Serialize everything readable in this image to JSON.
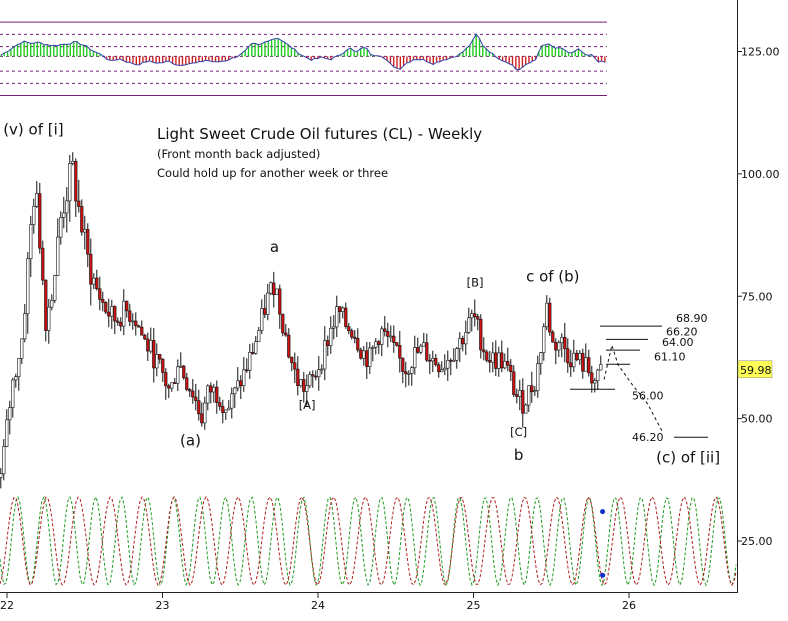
{
  "chart_data": {
    "type": "candlestick",
    "title": "Light Sweet Crude Oil futures (CL) - Weekly",
    "subtitle_lines": [
      "(Front month back adjusted)",
      "Could hold up for another week or three"
    ],
    "x_ticks": [
      "22",
      "23",
      "24",
      "25",
      "26"
    ],
    "y_ticks": [
      {
        "value": 125,
        "label": "125.00"
      },
      {
        "value": 100,
        "label": "100.00"
      },
      {
        "value": 75,
        "label": "75.00"
      },
      {
        "value": 50,
        "label": "50.00"
      },
      {
        "value": 25,
        "label": "25.00"
      }
    ],
    "ylim": [
      10,
      137
    ],
    "xlim": [
      21.96,
      26.68
    ],
    "last_price": {
      "value": 59.98,
      "label": "59.98"
    },
    "price_path": [
      [
        21.96,
        38
      ],
      [
        22.03,
        56
      ],
      [
        22.1,
        67
      ],
      [
        22.17,
        96
      ],
      [
        22.2,
        92
      ],
      [
        22.25,
        70
      ],
      [
        22.3,
        78
      ],
      [
        22.35,
        92
      ],
      [
        22.42,
        101
      ],
      [
        22.46,
        93
      ],
      [
        22.52,
        82
      ],
      [
        22.58,
        76
      ],
      [
        22.64,
        72
      ],
      [
        22.7,
        70
      ],
      [
        22.76,
        72
      ],
      [
        22.82,
        71
      ],
      [
        22.88,
        66
      ],
      [
        22.94,
        63
      ],
      [
        23.0,
        59
      ],
      [
        23.05,
        55
      ],
      [
        23.1,
        62
      ],
      [
        23.15,
        58
      ],
      [
        23.2,
        55
      ],
      [
        23.25,
        50
      ],
      [
        23.3,
        56
      ],
      [
        23.36,
        55
      ],
      [
        23.42,
        52
      ],
      [
        23.48,
        56
      ],
      [
        23.55,
        61
      ],
      [
        23.62,
        68
      ],
      [
        23.67,
        74
      ],
      [
        23.72,
        78
      ],
      [
        23.76,
        72
      ],
      [
        23.81,
        64
      ],
      [
        23.86,
        58
      ],
      [
        23.92,
        56
      ],
      [
        23.97,
        58
      ],
      [
        24.03,
        63
      ],
      [
        24.08,
        68
      ],
      [
        24.13,
        72
      ],
      [
        24.18,
        69
      ],
      [
        24.23,
        68
      ],
      [
        24.28,
        64
      ],
      [
        24.33,
        62
      ],
      [
        24.4,
        68
      ],
      [
        24.45,
        66
      ],
      [
        24.5,
        63
      ],
      [
        24.56,
        60
      ],
      [
        24.62,
        63
      ],
      [
        24.68,
        64
      ],
      [
        24.74,
        62
      ],
      [
        24.8,
        61
      ],
      [
        24.85,
        63
      ],
      [
        24.9,
        65
      ],
      [
        24.95,
        68
      ],
      [
        25.0,
        71
      ],
      [
        25.04,
        67
      ],
      [
        25.08,
        63
      ],
      [
        25.13,
        62
      ],
      [
        25.18,
        62
      ],
      [
        25.23,
        59
      ],
      [
        25.27,
        55
      ],
      [
        25.31,
        53
      ],
      [
        25.35,
        55
      ],
      [
        25.4,
        58
      ],
      [
        25.44,
        66
      ],
      [
        25.47,
        73
      ],
      [
        25.51,
        65
      ],
      [
        25.56,
        66
      ],
      [
        25.61,
        63
      ],
      [
        25.66,
        62
      ],
      [
        25.71,
        61
      ],
      [
        25.76,
        59
      ],
      [
        25.79,
        57
      ],
      [
        25.83,
        60.5
      ]
    ],
    "fib_levels": [
      {
        "value": 68.9,
        "label": "68.90"
      },
      {
        "value": 66.2,
        "label": "66.20"
      },
      {
        "value": 64.0,
        "label": "64.00"
      },
      {
        "value": 61.1,
        "label": "61.10"
      },
      {
        "value": 56.0,
        "label": "56.00"
      },
      {
        "value": 46.2,
        "label": "46.20"
      }
    ],
    "projection_path": [
      [
        25.84,
        58
      ],
      [
        25.89,
        65
      ],
      [
        25.93,
        61
      ],
      [
        26.02,
        57
      ],
      [
        26.12,
        53
      ],
      [
        26.22,
        47
      ]
    ],
    "wave_labels": [
      {
        "text": "(v) of [i]",
        "x": 22.17,
        "y": 108
      },
      {
        "text": "(a)",
        "x": 23.18,
        "y": 44.5
      },
      {
        "text": "a",
        "x": 23.72,
        "y": 84
      },
      {
        "text": "[A]",
        "x": 23.93,
        "y": 52
      },
      {
        "text": "[B]",
        "x": 25.01,
        "y": 77
      },
      {
        "text": "c of (b)",
        "x": 25.51,
        "y": 78
      },
      {
        "text": "[C]",
        "x": 25.29,
        "y": 46.5
      },
      {
        "text": "b",
        "x": 25.29,
        "y": 41.5
      },
      {
        "text": "(c) of [ii]",
        "x": 26.38,
        "y": 41
      }
    ],
    "oscillator": {
      "band_lines": [
        131,
        128.5,
        126,
        124,
        121,
        118.5,
        116
      ],
      "series": [
        [
          21.96,
          0.05
        ],
        [
          22.03,
          0.35
        ],
        [
          22.1,
          0.62
        ],
        [
          22.15,
          0.55
        ],
        [
          22.2,
          0.58
        ],
        [
          22.25,
          0.5
        ],
        [
          22.3,
          0.45
        ],
        [
          22.38,
          0.52
        ],
        [
          22.44,
          0.6
        ],
        [
          22.5,
          0.45
        ],
        [
          22.56,
          0.2
        ],
        [
          22.62,
          0.02
        ],
        [
          22.66,
          -0.2
        ],
        [
          22.72,
          -0.1
        ],
        [
          22.78,
          -0.25
        ],
        [
          22.84,
          -0.35
        ],
        [
          22.9,
          -0.2
        ],
        [
          22.98,
          -0.28
        ],
        [
          23.04,
          -0.2
        ],
        [
          23.1,
          -0.38
        ],
        [
          23.16,
          -0.3
        ],
        [
          23.22,
          -0.28
        ],
        [
          23.28,
          -0.15
        ],
        [
          23.34,
          -0.25
        ],
        [
          23.4,
          -0.18
        ],
        [
          23.46,
          -0.05
        ],
        [
          23.52,
          0.15
        ],
        [
          23.58,
          0.55
        ],
        [
          23.62,
          0.45
        ],
        [
          23.68,
          0.68
        ],
        [
          23.74,
          0.78
        ],
        [
          23.8,
          0.5
        ],
        [
          23.86,
          0.22
        ],
        [
          23.9,
          0.02
        ],
        [
          23.96,
          -0.15
        ],
        [
          24.02,
          -0.05
        ],
        [
          24.08,
          -0.12
        ],
        [
          24.14,
          0.05
        ],
        [
          24.2,
          0.38
        ],
        [
          24.24,
          0.15
        ],
        [
          24.3,
          0.42
        ],
        [
          24.34,
          0.08
        ],
        [
          24.4,
          0.05
        ],
        [
          24.46,
          -0.3
        ],
        [
          24.52,
          -0.55
        ],
        [
          24.56,
          -0.3
        ],
        [
          24.62,
          -0.1
        ],
        [
          24.68,
          -0.15
        ],
        [
          24.74,
          -0.3
        ],
        [
          24.8,
          -0.15
        ],
        [
          24.86,
          -0.05
        ],
        [
          24.92,
          0.12
        ],
        [
          24.98,
          0.5
        ],
        [
          25.02,
          0.95
        ],
        [
          25.06,
          0.45
        ],
        [
          25.12,
          0.1
        ],
        [
          25.18,
          -0.15
        ],
        [
          25.24,
          -0.3
        ],
        [
          25.28,
          -0.6
        ],
        [
          25.34,
          -0.35
        ],
        [
          25.4,
          -0.1
        ],
        [
          25.44,
          0.45
        ],
        [
          25.48,
          0.5
        ],
        [
          25.52,
          0.35
        ],
        [
          25.58,
          0.3
        ],
        [
          25.62,
          0.1
        ],
        [
          25.68,
          0.3
        ],
        [
          25.72,
          0.02
        ],
        [
          25.76,
          0.05
        ],
        [
          25.8,
          -0.2
        ],
        [
          25.84,
          -0.25
        ]
      ]
    },
    "cycles": {
      "series": [
        {
          "color": "#1f9a1f",
          "period": 0.167,
          "phase": 0.03
        },
        {
          "color": "#b02020",
          "period": 0.205,
          "phase": 0.12
        }
      ],
      "markers": [
        {
          "x": 25.83,
          "y": 31
        },
        {
          "x": 25.83,
          "y": 18
        }
      ]
    },
    "colors": {
      "up_candle": "#ffffff",
      "down_candle": "#cc1111",
      "oscillator_positive": "#22cc22",
      "oscillator_negative": "#cc2222",
      "oscillator_line": "#3344aa",
      "band_line": "#7a1f7a",
      "marker": "#1030cc",
      "last_price_bg": "#ffff55"
    }
  }
}
